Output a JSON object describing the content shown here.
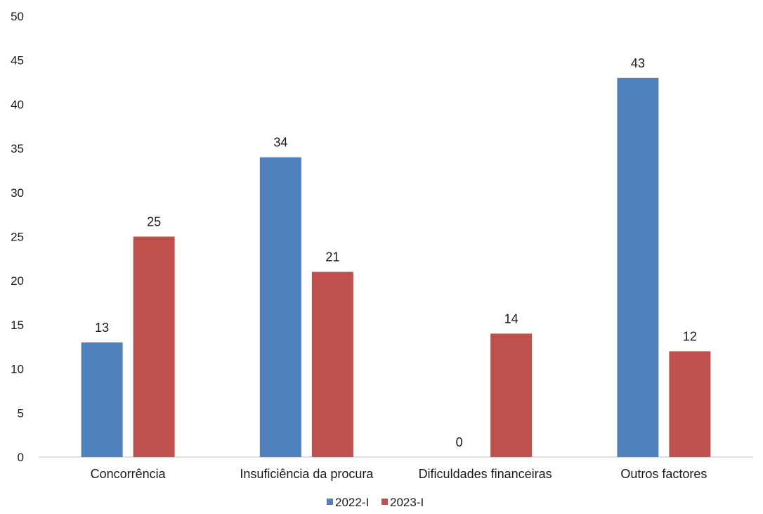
{
  "chart_data": {
    "type": "bar",
    "categories": [
      "Concorrência",
      "Insuficiência da procura",
      "Dificuldades financeiras",
      "Outros factores"
    ],
    "series": [
      {
        "name": "2022-I",
        "values": [
          13,
          34,
          0,
          43
        ],
        "color": "#4F81BD"
      },
      {
        "name": "2023-I",
        "values": [
          25,
          21,
          14,
          12
        ],
        "color": "#C0504D"
      }
    ],
    "ylim": [
      0,
      50
    ],
    "yticks": [
      0,
      5,
      10,
      15,
      20,
      25,
      30,
      35,
      40,
      45,
      50
    ],
    "grid": false,
    "legend_position": "bottom-center",
    "data_labels": true
  }
}
